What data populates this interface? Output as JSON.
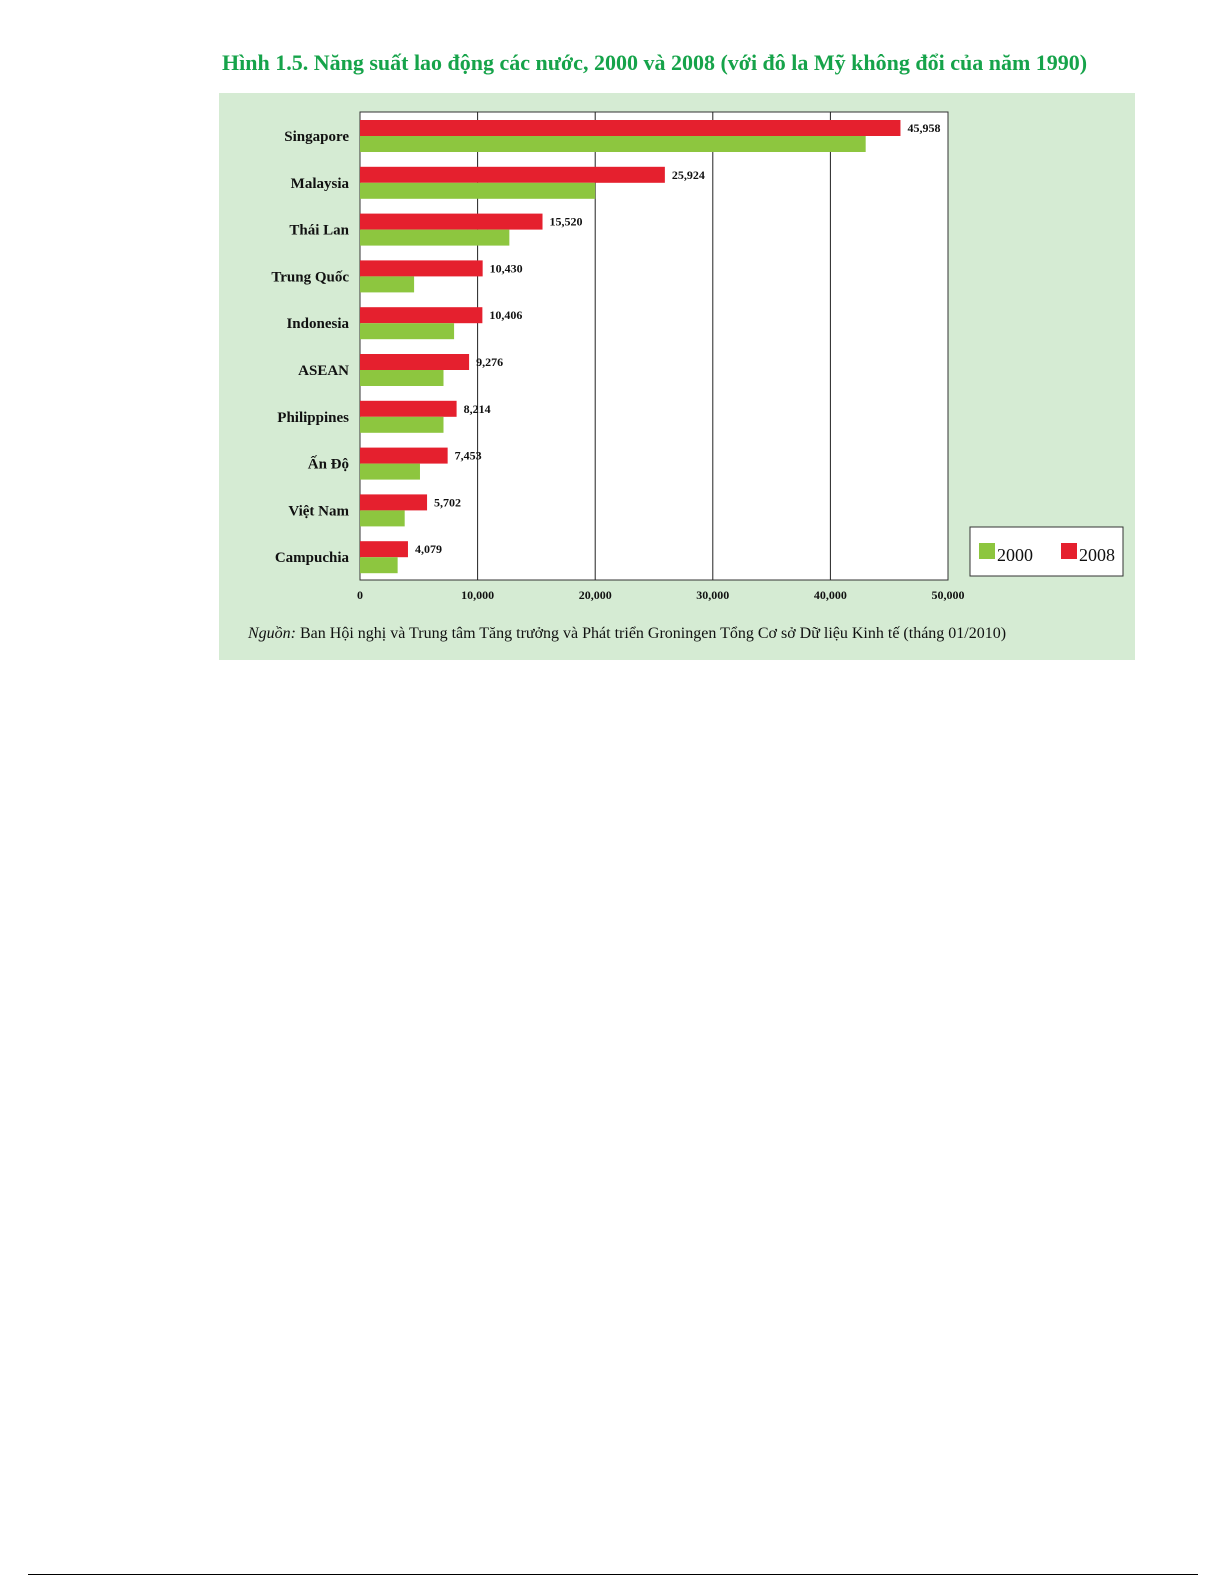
{
  "figure": {
    "title": "Hình 1.5. Năng suất lao động các nước, 2000 và 2008 (với đô la Mỹ không đổi của năm 1990)",
    "source_label": "Nguồn:",
    "source_text": "Ban Hội nghị và Trung tâm Tăng trưởng và Phát triển Groningen Tổng Cơ sở Dữ liệu Kinh tế (tháng 01/2010)"
  },
  "chart_data": {
    "type": "bar",
    "orientation": "horizontal",
    "title": "",
    "xlabel": "",
    "ylabel": "",
    "categories": [
      "Singapore",
      "Malaysia",
      "Thái Lan",
      "Trung Quốc",
      "Indonesia",
      "ASEAN",
      "Philippines",
      "Ấn Độ",
      "Việt Nam",
      "Campuchia"
    ],
    "series": [
      {
        "name": "2008",
        "color": "#e5202e",
        "values": [
          45958,
          25924,
          15520,
          10430,
          10406,
          9276,
          8214,
          7453,
          5702,
          4079
        ],
        "labels": [
          "45,958",
          "25,924",
          "15,520",
          "10,430",
          "10,406",
          "9,276",
          "8,214",
          "7,453",
          "5,702",
          "4,079"
        ]
      },
      {
        "name": "2000",
        "color": "#8dc63f",
        "values": [
          43000,
          20000,
          12700,
          4600,
          8000,
          7100,
          7100,
          5100,
          3800,
          3200
        ]
      }
    ],
    "xlim": [
      0,
      50000
    ],
    "xticks": [
      0,
      10000,
      20000,
      30000,
      40000,
      50000
    ],
    "xtick_labels": [
      "0",
      "10,000",
      "20,000",
      "30,000",
      "40,000",
      "50,000"
    ],
    "grid": "vertical",
    "legend": {
      "position": "bottom-right",
      "order": [
        "2000",
        "2008"
      ]
    }
  }
}
